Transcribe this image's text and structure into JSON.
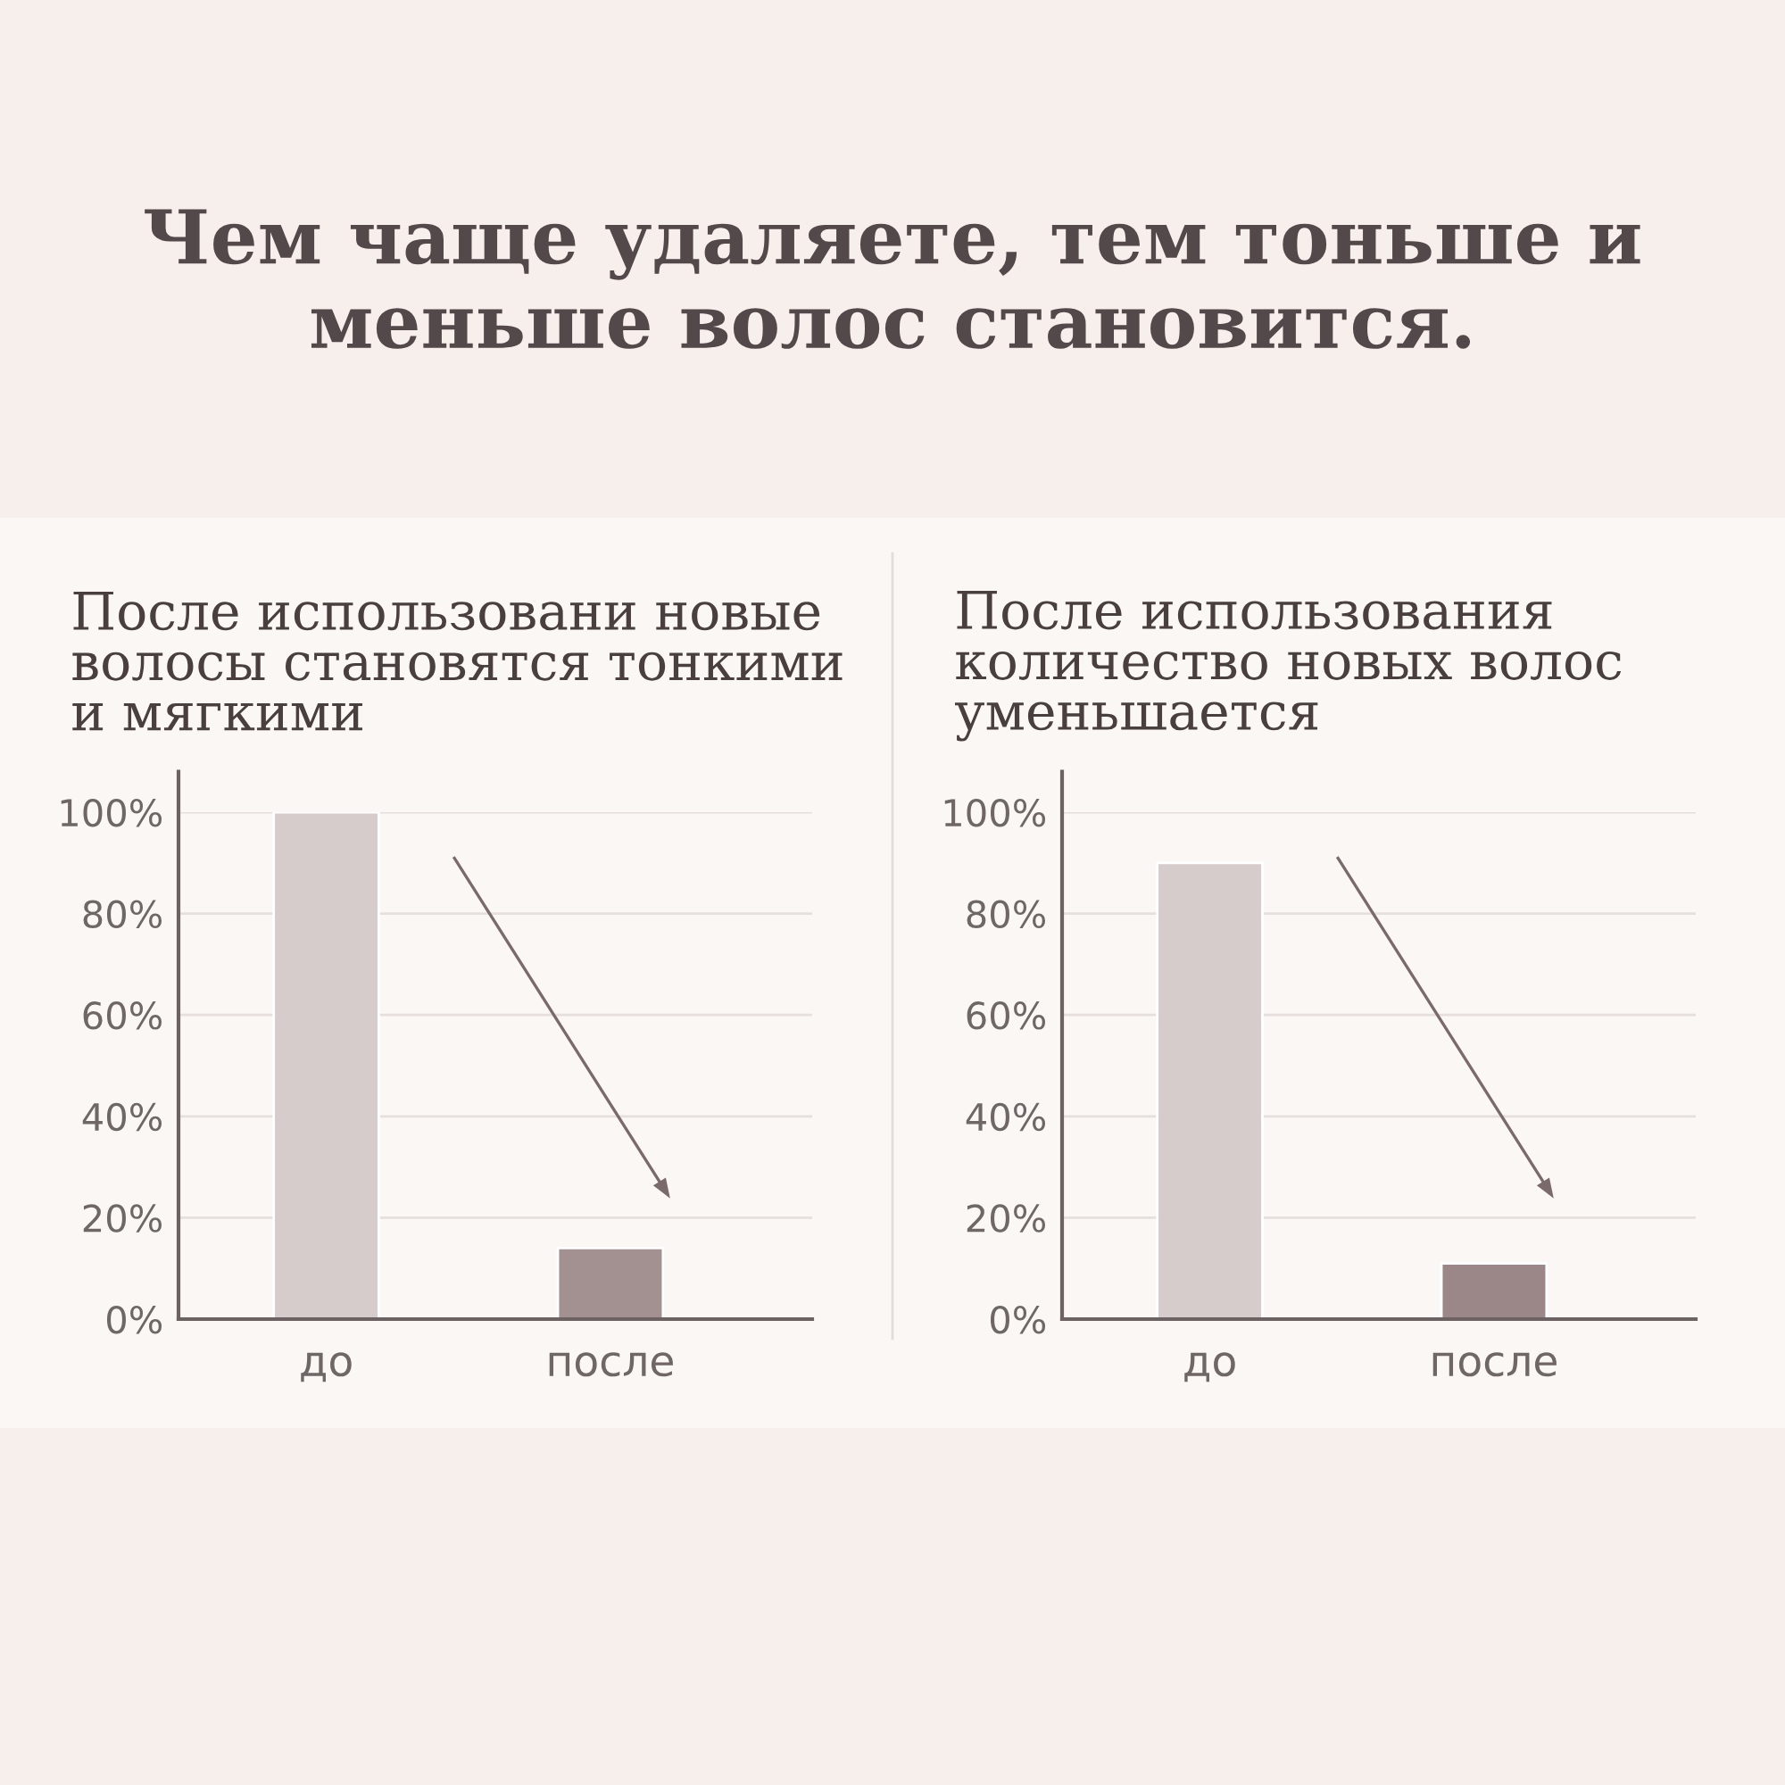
{
  "chart_data": [
    {
      "type": "bar",
      "title": "После использовани новые\nволосы становятся тонкими\nи мягкими",
      "annotations": [
        "Чем чаще удаляете, тем тоньше и меньше волос становится."
      ],
      "categories": [
        "до",
        "после"
      ],
      "values": [
        100,
        14
      ],
      "colors": [
        "#d5cccb",
        "#a39091"
      ],
      "ylim": [
        0,
        100
      ],
      "yticks": [
        {
          "value": 0,
          "label": "0%"
        },
        {
          "value": 20,
          "label": "20%"
        },
        {
          "value": 40,
          "label": "40%"
        },
        {
          "value": 60,
          "label": "60%"
        },
        {
          "value": 80,
          "label": "80%"
        },
        {
          "value": 100,
          "label": "100%"
        }
      ],
      "grid": "y"
    },
    {
      "type": "bar",
      "title": "После использования\nколичество новых волос\nуменьшается",
      "categories": [
        "до",
        "после"
      ],
      "values": [
        90,
        11
      ],
      "colors": [
        "#d5cccb",
        "#9c8788"
      ],
      "ylim": [
        0,
        100
      ],
      "yticks": [
        {
          "value": 0,
          "label": "0%"
        },
        {
          "value": 20,
          "label": "20%"
        },
        {
          "value": 40,
          "label": "40%"
        },
        {
          "value": 60,
          "label": "60%"
        },
        {
          "value": 80,
          "label": "80%"
        },
        {
          "value": 100,
          "label": "100%"
        }
      ],
      "grid": "y"
    }
  ]
}
